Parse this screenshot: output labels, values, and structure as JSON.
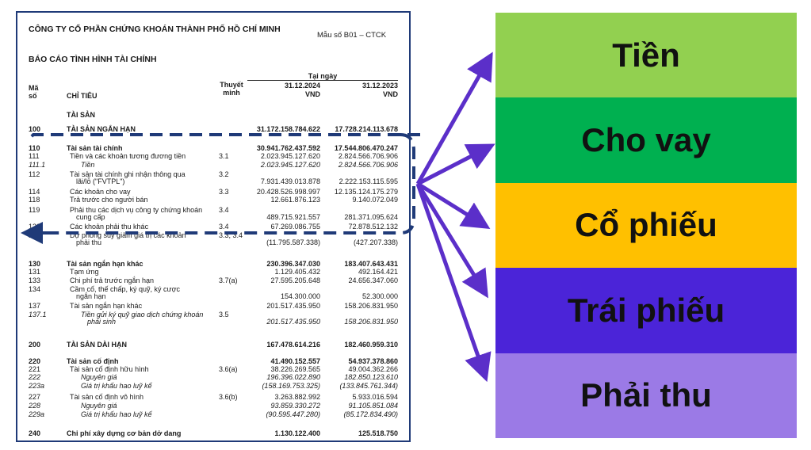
{
  "document": {
    "company": "CÔNG TY CỔ PHẦN CHỨNG KHOÁN THÀNH PHỐ HỒ CHÍ MINH",
    "form_no": "Mẫu số B01 – CTCK",
    "title": "BÁO CÁO TÌNH HÌNH TÀI CHÍNH",
    "headers": {
      "code": "Mã số",
      "item": "CHỈ TIÊU",
      "note": "Thuyết minh",
      "as_of": "Tại ngày",
      "date1": "31.12.2024",
      "date2": "31.12.2023",
      "unit1": "VND",
      "unit2": "VND"
    },
    "section_assets": "TÀI SẢN",
    "rows": [
      {
        "code": "100",
        "item": "TÀI SẢN NGẮN HẠN",
        "note": "",
        "v1": "31.172.158.784.622",
        "v2": "17.728.214.113.678",
        "style": "b"
      },
      {
        "code": "110",
        "item": "Tài sản tài chính",
        "note": "",
        "v1": "30.941.762.437.592",
        "v2": "17.544.806.470.247",
        "style": "b"
      },
      {
        "code": "111",
        "item": "Tiền và các khoản tương đương tiền",
        "note": "3.1",
        "v1": "2.023.945.127.620",
        "v2": "2.824.566.706.906",
        "style": ""
      },
      {
        "code": "111.1",
        "item": "Tiền",
        "note": "",
        "v1": "2.023.945.127.620",
        "v2": "2.824.566.706.906",
        "style": "i"
      },
      {
        "code": "112",
        "item": "Tài sản tài chính ghi nhận thông qua",
        "item2": "lãi/lỗ (\"FVTPL\")",
        "note": "3.2",
        "v1": "7.931.439.013.878",
        "v2": "2.222.153.115.595",
        "style": ""
      },
      {
        "code": "114",
        "item": "Các khoản cho vay",
        "note": "3.3",
        "v1": "20.428.526.998.997",
        "v2": "12.135.124.175.279",
        "style": ""
      },
      {
        "code": "118",
        "item": "Trả trước cho người bán",
        "note": "",
        "v1": "12.661.876.123",
        "v2": "9.140.072.049",
        "style": ""
      },
      {
        "code": "119",
        "item": "Phải thu các dịch vụ công ty chứng khoán",
        "item2": "cung cấp",
        "note": "3.4",
        "v1": "489.715.921.557",
        "v2": "281.371.095.624",
        "style": ""
      },
      {
        "code": "122",
        "item": "Các khoản phải thu khác",
        "note": "3.4",
        "v1": "67.269.086.755",
        "v2": "72.878.512.132",
        "style": ""
      },
      {
        "code": "129",
        "item": "Dự phòng suy giảm giá trị các khoản",
        "item2": "phải thu",
        "note": "3.3, 3.4",
        "v1": "(11.795.587.338)",
        "v2": "(427.207.338)",
        "style": ""
      },
      {
        "code": "130",
        "item": "Tài sản ngắn hạn khác",
        "note": "",
        "v1": "230.396.347.030",
        "v2": "183.407.643.431",
        "style": "b"
      },
      {
        "code": "131",
        "item": "Tạm ứng",
        "note": "",
        "v1": "1.129.405.432",
        "v2": "492.164.421",
        "style": ""
      },
      {
        "code": "133",
        "item": "Chi phí trả trước ngắn hạn",
        "note": "3.7(a)",
        "v1": "27.595.205.648",
        "v2": "24.656.347.060",
        "style": ""
      },
      {
        "code": "134",
        "item": "Cầm cố, thế chấp, ký quỹ, ký cược",
        "item2": "ngắn hạn",
        "note": "",
        "v1": "154.300.000",
        "v2": "52.300.000",
        "style": ""
      },
      {
        "code": "137",
        "item": "Tài sản ngắn hạn khác",
        "note": "",
        "v1": "201.517.435.950",
        "v2": "158.206.831.950",
        "style": ""
      },
      {
        "code": "137.1",
        "item": "Tiền gửi ký quỹ giao dịch chứng khoán",
        "item2": "phái sinh",
        "note": "3.5",
        "v1": "201.517.435.950",
        "v2": "158.206.831.950",
        "style": "i"
      },
      {
        "code": "200",
        "item": "TÀI SẢN DÀI HẠN",
        "note": "",
        "v1": "167.478.614.216",
        "v2": "182.460.959.310",
        "style": "b"
      },
      {
        "code": "220",
        "item": "Tài sản cố định",
        "note": "",
        "v1": "41.490.152.557",
        "v2": "54.937.378.860",
        "style": "b"
      },
      {
        "code": "221",
        "item": "Tài sản cố định hữu hình",
        "note": "3.6(a)",
        "v1": "38.226.269.565",
        "v2": "49.004.362.266",
        "style": ""
      },
      {
        "code": "222",
        "item": "Nguyên giá",
        "note": "",
        "v1": "196.396.022.890",
        "v2": "182.850.123.610",
        "style": "i"
      },
      {
        "code": "223a",
        "item": "Giá trị khấu hao luỹ kế",
        "note": "",
        "v1": "(158.169.753.325)",
        "v2": "(133.845.761.344)",
        "style": "i"
      },
      {
        "code": "227",
        "item": "Tài sản cố định vô hình",
        "note": "3.6(b)",
        "v1": "3.263.882.992",
        "v2": "5.933.016.594",
        "style": ""
      },
      {
        "code": "228",
        "item": "Nguyên giá",
        "note": "",
        "v1": "93.859.330.272",
        "v2": "91.105.851.084",
        "style": "i"
      },
      {
        "code": "229a",
        "item": "Giá trị khấu hao luỹ kế",
        "note": "",
        "v1": "(90.595.447.280)",
        "v2": "(85.172.834.490)",
        "style": "i"
      },
      {
        "code": "240",
        "item": "Chi phí xây dựng cơ bản dở dang",
        "note": "",
        "v1": "1.130.122.400",
        "v2": "125.518.750",
        "style": "b"
      }
    ]
  },
  "categories": [
    {
      "label": "Tiền",
      "color": "#92d050"
    },
    {
      "label": "Cho vay",
      "color": "#00b050"
    },
    {
      "label": "Cổ phiếu",
      "color": "#ffc000"
    },
    {
      "label": "Trái phiếu",
      "color": "#4b24d8"
    },
    {
      "label": "Phải thu",
      "color": "#9b7ae6"
    }
  ],
  "colors": {
    "arrow": "#5b2fc9",
    "dashed_box": "#1f3a78",
    "doc_border": "#1f3a78"
  }
}
